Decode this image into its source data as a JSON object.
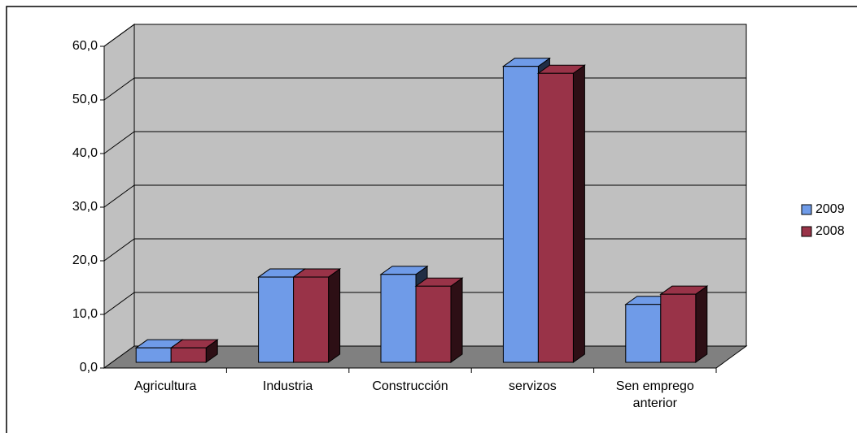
{
  "chart_data": {
    "type": "bar3d",
    "categories": [
      "Agricultura",
      "Industria",
      "Construcción",
      "servizos",
      "Sen emprego anterior"
    ],
    "series": [
      {
        "name": "2009",
        "color": "#6f9be8",
        "values": [
          2.7,
          15.9,
          16.4,
          55.2,
          10.8
        ]
      },
      {
        "name": "2008",
        "color": "#993348",
        "values": [
          2.7,
          15.9,
          14.2,
          53.9,
          12.7
        ]
      }
    ],
    "ylim": [
      0,
      60
    ],
    "yticks": [
      {
        "value": 0,
        "label": "0,0"
      },
      {
        "value": 10,
        "label": "10,0"
      },
      {
        "value": 20,
        "label": "20,0"
      },
      {
        "value": 30,
        "label": "30,0"
      },
      {
        "value": 40,
        "label": "40,0"
      },
      {
        "value": 50,
        "label": "50,0"
      },
      {
        "value": 60,
        "label": "60,0"
      }
    ],
    "grid": true
  }
}
